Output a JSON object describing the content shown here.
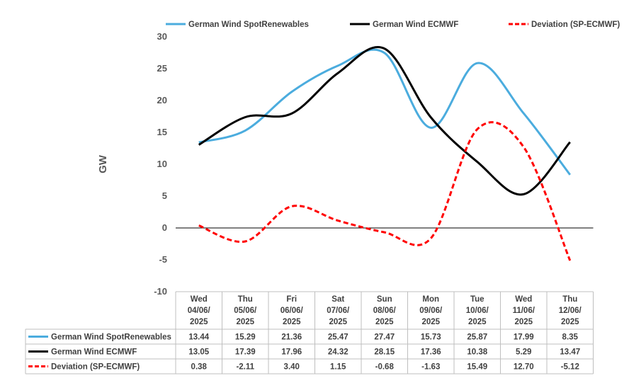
{
  "chart_data": {
    "type": "line",
    "ylabel": "GW",
    "ylim": [
      -10,
      30
    ],
    "yticks": [
      30,
      25,
      20,
      15,
      10,
      5,
      0,
      -5,
      -10
    ],
    "categories": [
      [
        "Wed",
        "04/06/",
        "2025"
      ],
      [
        "Thu",
        "05/06/",
        "2025"
      ],
      [
        "Fri",
        "06/06/",
        "2025"
      ],
      [
        "Sat",
        "07/06/",
        "2025"
      ],
      [
        "Sun",
        "08/06/",
        "2025"
      ],
      [
        "Mon",
        "09/06/",
        "2025"
      ],
      [
        "Tue",
        "10/06/",
        "2025"
      ],
      [
        "Wed",
        "11/06/",
        "2025"
      ],
      [
        "Thu",
        "12/06/",
        "2025"
      ]
    ],
    "legend_position": "top",
    "series": [
      {
        "name": "German Wind SpotRenewables",
        "color": "#4bacde",
        "dash": "solid",
        "values": [
          13.44,
          15.29,
          21.36,
          25.47,
          27.47,
          15.73,
          25.87,
          17.99,
          8.35
        ],
        "labels": [
          "13.44",
          "15.29",
          "21.36",
          "25.47",
          "27.47",
          "15.73",
          "25.87",
          "17.99",
          "8.35"
        ]
      },
      {
        "name": "German Wind ECMWF",
        "color": "#000000",
        "dash": "solid",
        "values": [
          13.05,
          17.39,
          17.96,
          24.32,
          28.15,
          17.36,
          10.38,
          5.29,
          13.47
        ],
        "labels": [
          "13.05",
          "17.39",
          "17.96",
          "24.32",
          "28.15",
          "17.36",
          "10.38",
          "5.29",
          "13.47"
        ]
      },
      {
        "name": "Deviation (SP-ECMWF)",
        "color": "#ff0000",
        "dash": "dashed",
        "values": [
          0.38,
          -2.11,
          3.4,
          1.15,
          -0.68,
          -1.63,
          15.49,
          12.7,
          -5.12
        ],
        "labels": [
          "0.38",
          "-2.11",
          "3.40",
          "1.15",
          "-0.68",
          "-1.63",
          "15.49",
          "12.70",
          "-5.12"
        ]
      }
    ]
  }
}
